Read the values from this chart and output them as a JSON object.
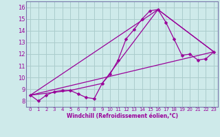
{
  "xlabel": "Windchill (Refroidissement éolien,°C)",
  "bg_color": "#ceeaea",
  "line_color": "#990099",
  "grid_color": "#aacccc",
  "axis_color": "#7777aa",
  "xlim": [
    -0.5,
    23.5
  ],
  "ylim": [
    7.5,
    16.5
  ],
  "xticks": [
    0,
    1,
    2,
    3,
    4,
    5,
    6,
    7,
    8,
    9,
    10,
    11,
    12,
    13,
    14,
    15,
    16,
    17,
    18,
    19,
    20,
    21,
    22,
    23
  ],
  "yticks": [
    8,
    9,
    10,
    11,
    12,
    13,
    14,
    15,
    16
  ],
  "series_main": {
    "x": [
      0,
      1,
      2,
      3,
      4,
      5,
      6,
      7,
      8,
      9,
      10,
      11,
      12,
      13,
      14,
      15,
      16,
      17,
      18,
      19,
      20,
      21,
      22,
      23
    ],
    "y": [
      8.5,
      8.0,
      8.5,
      8.8,
      8.9,
      8.9,
      8.6,
      8.3,
      8.2,
      9.5,
      10.3,
      11.5,
      13.3,
      14.1,
      15.0,
      15.7,
      15.8,
      14.7,
      13.3,
      11.9,
      12.0,
      11.5,
      11.6,
      12.2
    ]
  },
  "series_linear": {
    "x": [
      0,
      23
    ],
    "y": [
      8.5,
      12.2
    ]
  },
  "series_seg1": {
    "x": [
      0,
      16,
      23
    ],
    "y": [
      8.5,
      15.8,
      12.2
    ]
  },
  "series_seg2": {
    "x": [
      0,
      5,
      9,
      16,
      23
    ],
    "y": [
      8.5,
      8.9,
      9.5,
      15.8,
      12.2
    ]
  }
}
